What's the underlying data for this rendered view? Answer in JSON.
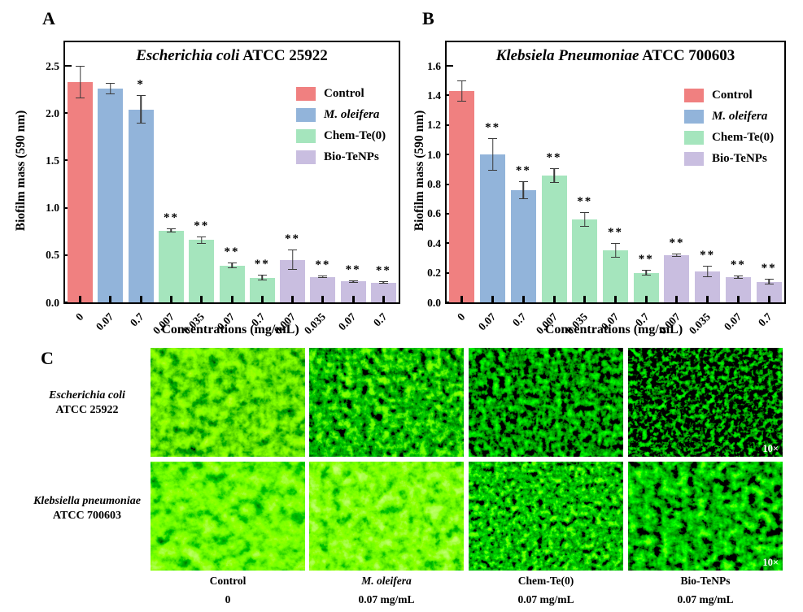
{
  "panels": {
    "a": "A",
    "b": "B",
    "c": "C"
  },
  "colors": {
    "control": "#F08080",
    "m_oleifera": "#92B4DA",
    "chem_te0": "#A5E5BD",
    "bio_tenps": "#C9BEE0",
    "error_bar": "#3a3a3a",
    "axis": "#000000"
  },
  "chart_data": [
    {
      "type": "bar",
      "panel": "A",
      "title_italic": "Escherichia coli",
      "title_rest": " ATCC 25922",
      "ylabel": "Biofilm mass (590 nm)",
      "xlabel": "Concentrations (mg/mL)",
      "ylim": [
        0,
        2.75
      ],
      "yticks": [
        "0.0",
        "0.5",
        "1.0",
        "1.5",
        "2.0",
        "2.5"
      ],
      "grid": false,
      "legend_position": "upper right",
      "categories": [
        "0",
        "0.07",
        "0.7",
        "0.007",
        "0.035",
        "0.07",
        "0.7",
        "0.007",
        "0.035",
        "0.07",
        "0.7"
      ],
      "groups": [
        "control",
        "m_oleifera",
        "m_oleifera",
        "chem_te0",
        "chem_te0",
        "chem_te0",
        "chem_te0",
        "bio_tenps",
        "bio_tenps",
        "bio_tenps",
        "bio_tenps"
      ],
      "values": [
        2.33,
        2.26,
        2.04,
        0.76,
        0.66,
        0.39,
        0.26,
        0.45,
        0.27,
        0.22,
        0.21
      ],
      "errors": [
        0.17,
        0.06,
        0.15,
        0.02,
        0.04,
        0.03,
        0.03,
        0.11,
        0.01,
        0.01,
        0.01
      ],
      "sig": [
        "",
        "",
        "*",
        "**",
        "**",
        "**",
        "**",
        "**",
        "**",
        "**",
        "**"
      ],
      "legend": [
        {
          "label": "Control",
          "italic": false
        },
        {
          "label": "M. oleifera",
          "italic": true
        },
        {
          "label": "Chem-Te(0)",
          "italic": false
        },
        {
          "label": "Bio-TeNPs",
          "italic": false
        }
      ]
    },
    {
      "type": "bar",
      "panel": "B",
      "title_italic": "Klebsiela Pneumoniae",
      "title_rest": " ATCC 700603",
      "ylabel": "Biofilm mass (590 nm)",
      "xlabel": "Concentrations (mg/mL)",
      "ylim": [
        0,
        1.76
      ],
      "yticks": [
        "0.0",
        "0.2",
        "0.4",
        "0.6",
        "0.8",
        "1.0",
        "1.2",
        "1.4",
        "1.6"
      ],
      "grid": false,
      "legend_position": "upper right",
      "categories": [
        "0",
        "0.07",
        "0.7",
        "0.007",
        "0.035",
        "0.07",
        "0.7",
        "0.007",
        "0.035",
        "0.07",
        "0.7"
      ],
      "groups": [
        "control",
        "m_oleifera",
        "m_oleifera",
        "chem_te0",
        "chem_te0",
        "chem_te0",
        "chem_te0",
        "bio_tenps",
        "bio_tenps",
        "bio_tenps",
        "bio_tenps"
      ],
      "values": [
        1.43,
        1.0,
        0.76,
        0.86,
        0.56,
        0.35,
        0.2,
        0.32,
        0.21,
        0.17,
        0.14
      ],
      "errors": [
        0.07,
        0.11,
        0.06,
        0.05,
        0.05,
        0.05,
        0.02,
        0.01,
        0.04,
        0.01,
        0.02
      ],
      "sig": [
        "",
        "**",
        "**",
        "**",
        "**",
        "**",
        "**",
        "**",
        "**",
        "**",
        "**"
      ],
      "legend": [
        {
          "label": "Control",
          "italic": false
        },
        {
          "label": "M. oleifera",
          "italic": true
        },
        {
          "label": "Chem-Te(0)",
          "italic": false
        },
        {
          "label": "Bio-TeNPs",
          "italic": false
        }
      ]
    }
  ],
  "panel_c": {
    "rows": [
      {
        "line1": "Escherichia coli",
        "line2": "ATCC 25922"
      },
      {
        "line1": "Klebsiella pneumoniae",
        "line2": "ATCC 700603"
      }
    ],
    "columns": [
      {
        "label": "Control",
        "conc": "0"
      },
      {
        "label": "M. oleifera",
        "conc": "0.07 mg/mL"
      },
      {
        "label": "Chem-Te(0)",
        "conc": "0.07 mg/mL"
      },
      {
        "label": "Bio-TeNPs",
        "conc": "0.07 mg/mL"
      }
    ],
    "magnification": "10×"
  }
}
